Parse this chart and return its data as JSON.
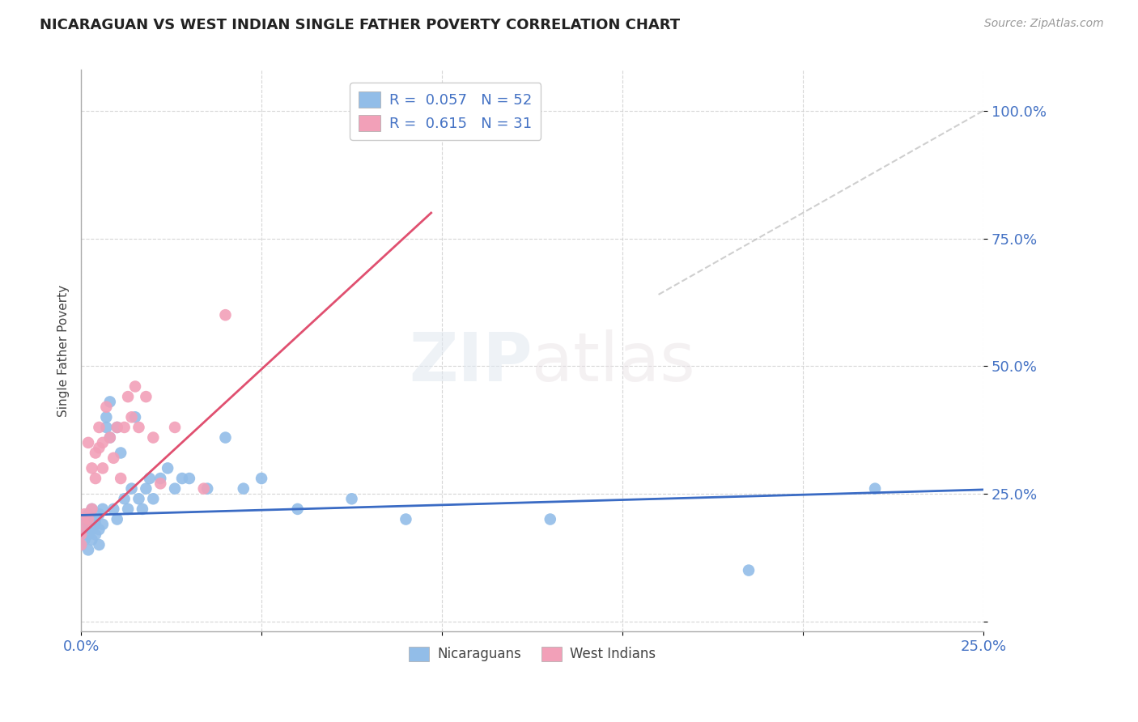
{
  "title": "NICARAGUAN VS WEST INDIAN SINGLE FATHER POVERTY CORRELATION CHART",
  "source": "Source: ZipAtlas.com",
  "ylabel": "Single Father Poverty",
  "xlim": [
    0.0,
    0.25
  ],
  "ylim": [
    -0.02,
    1.08
  ],
  "blue_color": "#92BDE8",
  "pink_color": "#F2A0B8",
  "trend_blue": "#3A6BC4",
  "trend_pink": "#E05070",
  "trend_diagonal": "#BBBBBB",
  "watermark_zip": "ZIP",
  "watermark_atlas": "atlas",
  "legend_R_blue": "R =  0.057",
  "legend_N_blue": "N = 52",
  "legend_R_pink": "R =  0.615",
  "legend_N_pink": "N = 31",
  "blue_scatter_x": [
    0.0,
    0.0,
    0.001,
    0.001,
    0.001,
    0.002,
    0.002,
    0.002,
    0.002,
    0.003,
    0.003,
    0.003,
    0.004,
    0.004,
    0.004,
    0.005,
    0.005,
    0.005,
    0.006,
    0.006,
    0.007,
    0.007,
    0.008,
    0.008,
    0.009,
    0.01,
    0.01,
    0.011,
    0.012,
    0.013,
    0.014,
    0.015,
    0.016,
    0.017,
    0.018,
    0.019,
    0.02,
    0.022,
    0.024,
    0.026,
    0.028,
    0.03,
    0.035,
    0.04,
    0.045,
    0.05,
    0.06,
    0.075,
    0.09,
    0.13,
    0.185,
    0.22
  ],
  "blue_scatter_y": [
    0.17,
    0.15,
    0.18,
    0.2,
    0.16,
    0.19,
    0.17,
    0.21,
    0.14,
    0.18,
    0.22,
    0.16,
    0.2,
    0.17,
    0.19,
    0.21,
    0.15,
    0.18,
    0.22,
    0.19,
    0.38,
    0.4,
    0.43,
    0.36,
    0.22,
    0.38,
    0.2,
    0.33,
    0.24,
    0.22,
    0.26,
    0.4,
    0.24,
    0.22,
    0.26,
    0.28,
    0.24,
    0.28,
    0.3,
    0.26,
    0.28,
    0.28,
    0.26,
    0.36,
    0.26,
    0.28,
    0.22,
    0.24,
    0.2,
    0.2,
    0.1,
    0.26
  ],
  "pink_scatter_x": [
    0.0,
    0.0,
    0.001,
    0.001,
    0.002,
    0.002,
    0.003,
    0.003,
    0.004,
    0.004,
    0.005,
    0.005,
    0.006,
    0.006,
    0.007,
    0.008,
    0.009,
    0.01,
    0.011,
    0.012,
    0.013,
    0.014,
    0.015,
    0.016,
    0.018,
    0.02,
    0.022,
    0.026,
    0.034,
    0.04,
    0.08
  ],
  "pink_scatter_y": [
    0.17,
    0.15,
    0.19,
    0.21,
    0.2,
    0.35,
    0.22,
    0.3,
    0.33,
    0.28,
    0.38,
    0.34,
    0.3,
    0.35,
    0.42,
    0.36,
    0.32,
    0.38,
    0.28,
    0.38,
    0.44,
    0.4,
    0.46,
    0.38,
    0.44,
    0.36,
    0.27,
    0.38,
    0.26,
    0.6,
    1.0
  ],
  "blue_trend_x": [
    0.0,
    0.25
  ],
  "blue_trend_y": [
    0.208,
    0.258
  ],
  "pink_trend_x": [
    0.0,
    0.097
  ],
  "pink_trend_y": [
    0.168,
    0.8
  ],
  "diag_trend_x": [
    0.16,
    0.25
  ],
  "diag_trend_y": [
    0.64,
    1.0
  ]
}
